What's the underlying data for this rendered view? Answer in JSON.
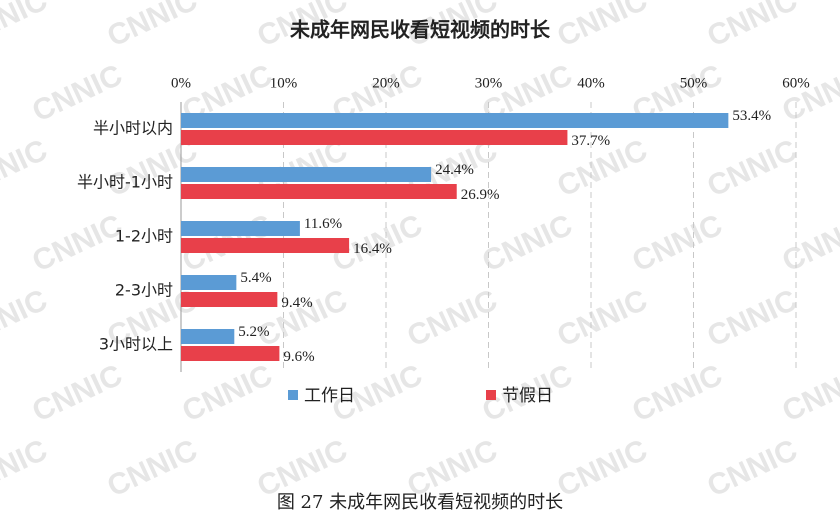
{
  "chart_data": {
    "type": "hbar",
    "title": "未成年网民收看短视频的时长",
    "caption": "图 27 未成年网民收看短视频的时长",
    "watermark": "CNNIC",
    "categories": [
      "半小时以内",
      "半小时-1小时",
      "1-2小时",
      "2-3小时",
      "3小时以上"
    ],
    "series": [
      {
        "name": "工作日",
        "color": "#5b9bd5",
        "values": [
          53.4,
          24.4,
          11.6,
          5.4,
          5.2
        ],
        "value_labels": [
          "53.4%",
          "24.4%",
          "11.6%",
          "5.4%",
          "5.2%"
        ]
      },
      {
        "name": "节假日",
        "color": "#e8404a",
        "values": [
          37.7,
          26.9,
          16.4,
          9.4,
          9.6
        ],
        "value_labels": [
          "37.7%",
          "26.9%",
          "16.4%",
          "9.4%",
          "9.6%"
        ]
      }
    ],
    "xlim": [
      0,
      60
    ],
    "xticks": [
      {
        "value": 0,
        "label": "0%"
      },
      {
        "value": 10,
        "label": "10%"
      },
      {
        "value": 20,
        "label": "20%"
      },
      {
        "value": 30,
        "label": "30%"
      },
      {
        "value": 40,
        "label": "40%"
      },
      {
        "value": 50,
        "label": "50%"
      },
      {
        "value": 60,
        "label": "60%"
      }
    ],
    "grid": true,
    "legend": "bottom"
  }
}
